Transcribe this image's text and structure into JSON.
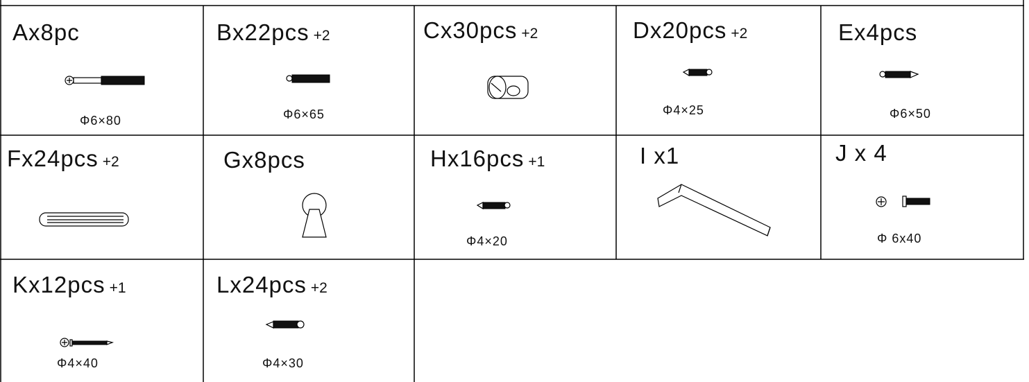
{
  "items": [
    {
      "label": "Ax8pc",
      "size": "Φ6×80"
    },
    {
      "label": "Bx22pcs",
      "extra": "+2",
      "size": "Φ6×65"
    },
    {
      "label": "Cx30pcs",
      "extra": "+2"
    },
    {
      "label": "Dx20pcs",
      "extra": "+2",
      "size": "Φ4×25"
    },
    {
      "label": "Ex4pcs",
      "size": "Φ6×50"
    },
    {
      "label": "Fx24pcs",
      "extra": "+2"
    },
    {
      "label": "Gx8pcs"
    },
    {
      "label": "Hx16pcs",
      "extra": "+1",
      "size": "Φ4×20"
    },
    {
      "label": "I x1"
    },
    {
      "label": "J x 4",
      "size": "Φ 6x40"
    },
    {
      "label": "Kx12pcs",
      "extra": "+1",
      "size": "Φ4×40"
    },
    {
      "label": "Lx24pcs",
      "extra": "+2",
      "size": "Φ4×30"
    }
  ]
}
